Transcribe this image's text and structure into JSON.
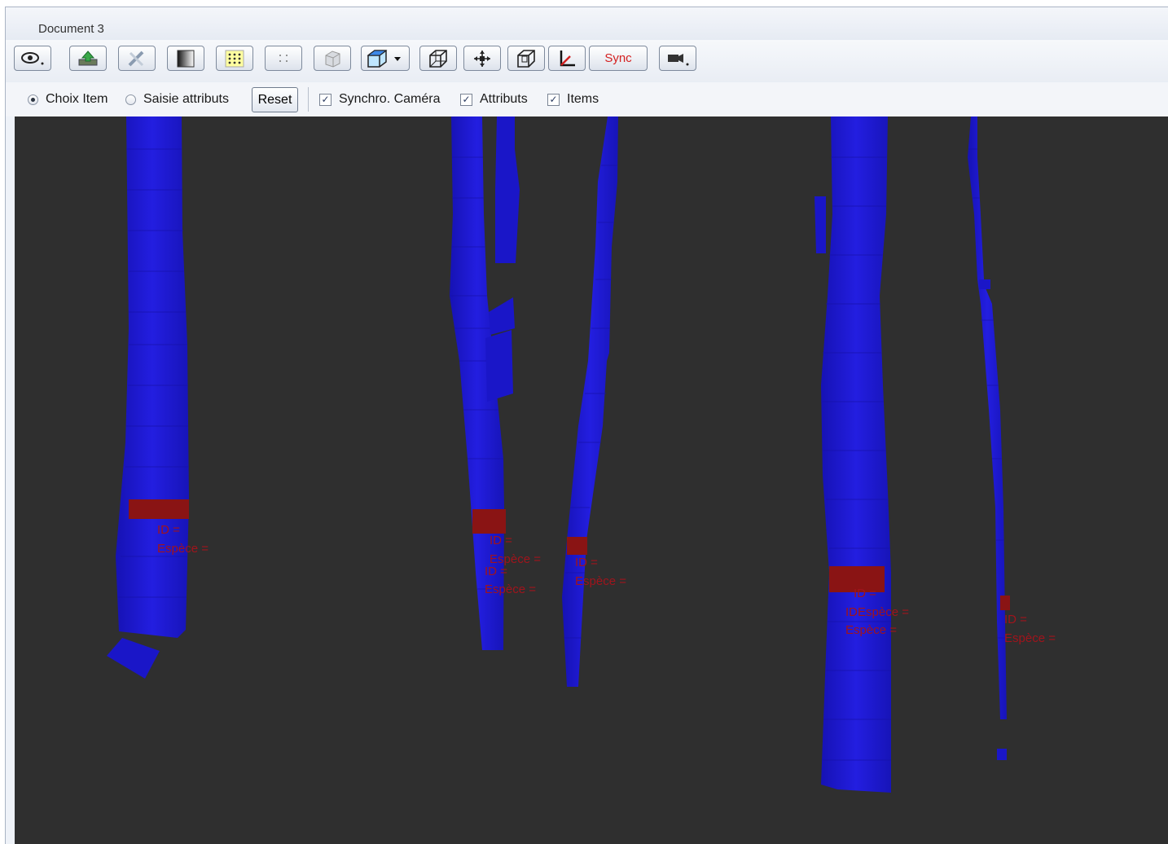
{
  "window": {
    "title": "Document 3"
  },
  "toolbar": {
    "buttons": [
      {
        "name": "eye-menu",
        "icon": "eye-icon"
      },
      {
        "name": "export",
        "icon": "export-icon"
      },
      {
        "name": "tools",
        "icon": "tools-icon"
      },
      {
        "name": "gradient",
        "icon": "gradient-icon"
      },
      {
        "name": "grid",
        "icon": "grid-icon"
      },
      {
        "name": "points",
        "icon": "points-icon"
      },
      {
        "name": "box-3d",
        "icon": "cube-grey-icon"
      },
      {
        "name": "view-cube-menu",
        "icon": "cube-blue-icon"
      },
      {
        "name": "perspective",
        "icon": "cube-wire-icon"
      },
      {
        "name": "center",
        "icon": "center-arrows-icon"
      },
      {
        "name": "bounding-box",
        "icon": "cube-box-icon"
      },
      {
        "name": "axes",
        "icon": "axes-icon"
      },
      {
        "name": "camera-menu",
        "icon": "camera-icon"
      }
    ],
    "sync_label": "Sync"
  },
  "options": {
    "radio_choix": "Choix Item",
    "radio_saisie": "Saisie attributs",
    "reset": "Reset",
    "sync_camera": "Synchro. Caméra",
    "attributs": "Attributs",
    "items": "Items"
  },
  "scene": {
    "colors": {
      "background": "#2f2f2f",
      "stem": "#1a17c8",
      "selected": "#8a1414",
      "label": "#a0141c"
    },
    "labels": {
      "t1_id": "ID =",
      "t1_esp": "Espèce =",
      "t2_id": "ID =",
      "t2_esp": "Espèce =",
      "t2_id_b": "ID =",
      "t2_esp_b": "Espèce =",
      "t3_id": "ID =",
      "t3_esp": "Espèce =",
      "t4_id": "ID =",
      "t4_esp": "IDEspèce =",
      "t4_esp_b": "Espèce =",
      "t5_id": "ID =",
      "t5_esp": "Espèce ="
    }
  }
}
